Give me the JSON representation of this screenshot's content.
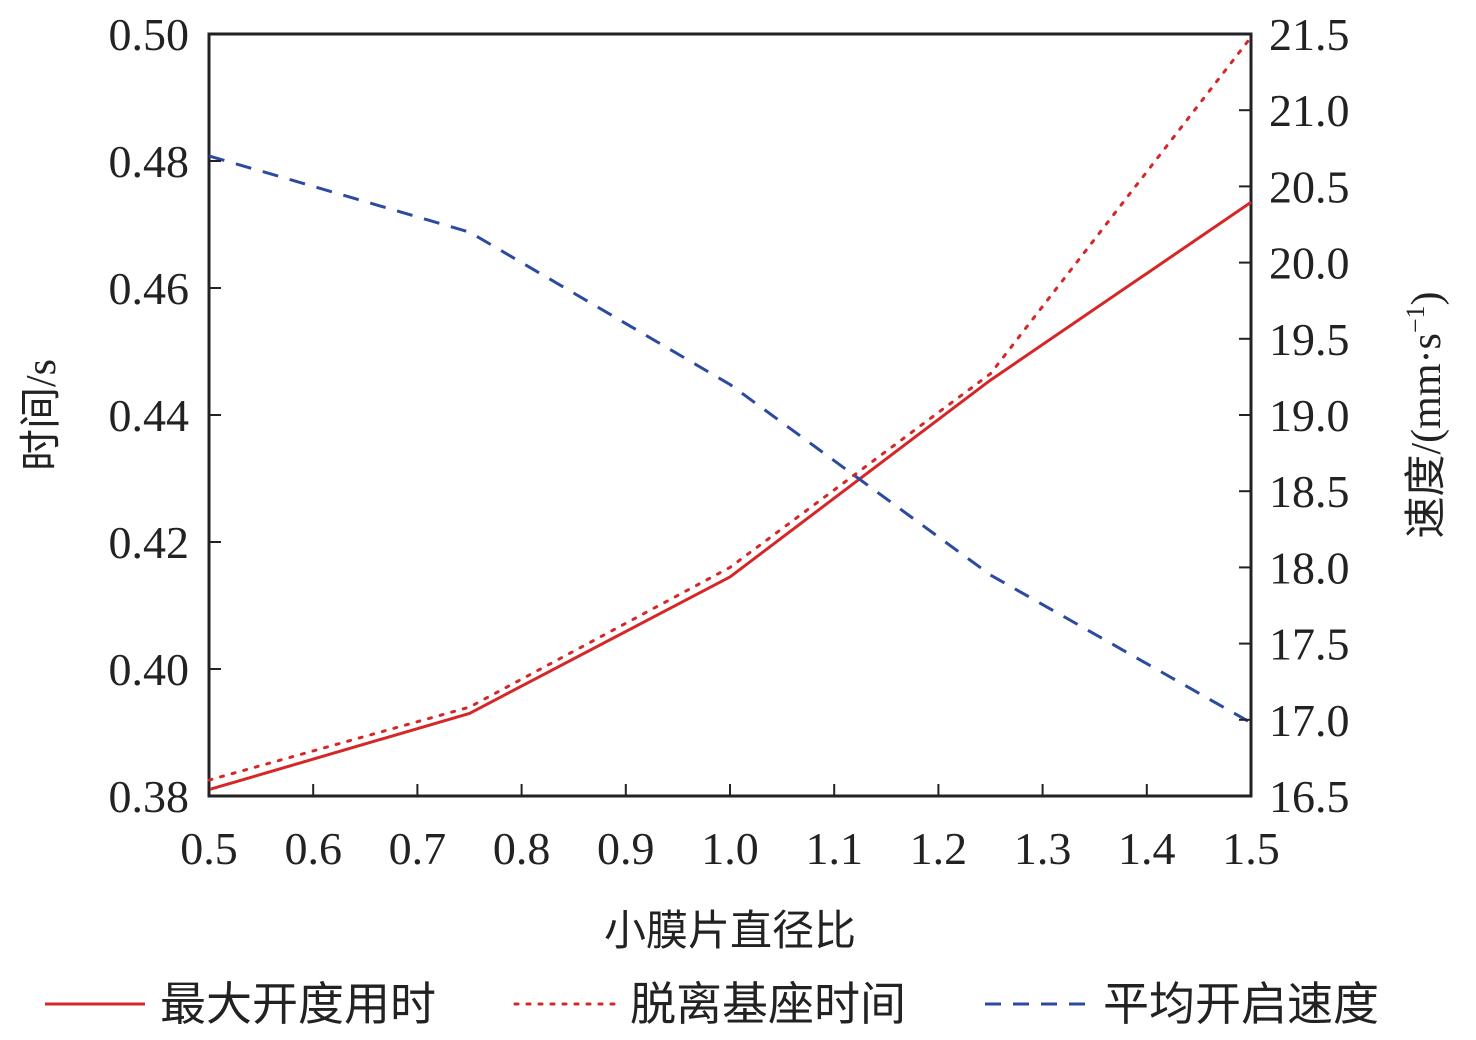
{
  "chart_data": {
    "type": "line",
    "xlabel": "小膜片直径比",
    "ylabel_left": "时间/s",
    "ylabel_right_main": "速度/(mm·s",
    "ylabel_right_sup": "−1",
    "ylabel_right_close": ")",
    "xlim": [
      0.5,
      1.5
    ],
    "ylim_left": [
      0.38,
      0.5
    ],
    "ylim_right": [
      16.5,
      21.5
    ],
    "x_ticks": [
      "0.5",
      "0.6",
      "0.7",
      "0.8",
      "0.9",
      "1.0",
      "1.1",
      "1.2",
      "1.3",
      "1.4",
      "1.5"
    ],
    "y_left_ticks": [
      "0.38",
      "0.40",
      "0.42",
      "0.44",
      "0.46",
      "0.48",
      "0.50"
    ],
    "y_right_ticks": [
      "16.5",
      "17.0",
      "17.5",
      "18.0",
      "18.5",
      "19.0",
      "19.5",
      "20.0",
      "20.5",
      "21.0",
      "21.5"
    ],
    "legend_position": "bottom",
    "grid": false,
    "series": [
      {
        "name": "最大开度用时",
        "axis": "left",
        "style": "solid",
        "color": "#d62728",
        "x": [
          0.5,
          0.75,
          1.0,
          1.25,
          1.5
        ],
        "y": [
          0.381,
          0.393,
          0.4145,
          0.4455,
          0.4735
        ]
      },
      {
        "name": "脱离基座时间",
        "axis": "left",
        "style": "dotted",
        "color": "#d62728",
        "x": [
          0.5,
          0.75,
          1.0,
          1.25,
          1.5
        ],
        "y": [
          0.3825,
          0.394,
          0.416,
          0.4465,
          0.4995
        ]
      },
      {
        "name": "平均开启速度",
        "axis": "right",
        "style": "dashed",
        "color": "#2b4aa0",
        "x": [
          0.5,
          0.75,
          1.0,
          1.25,
          1.5
        ],
        "y": [
          20.7,
          20.2,
          19.2,
          17.95,
          16.98
        ]
      }
    ]
  }
}
